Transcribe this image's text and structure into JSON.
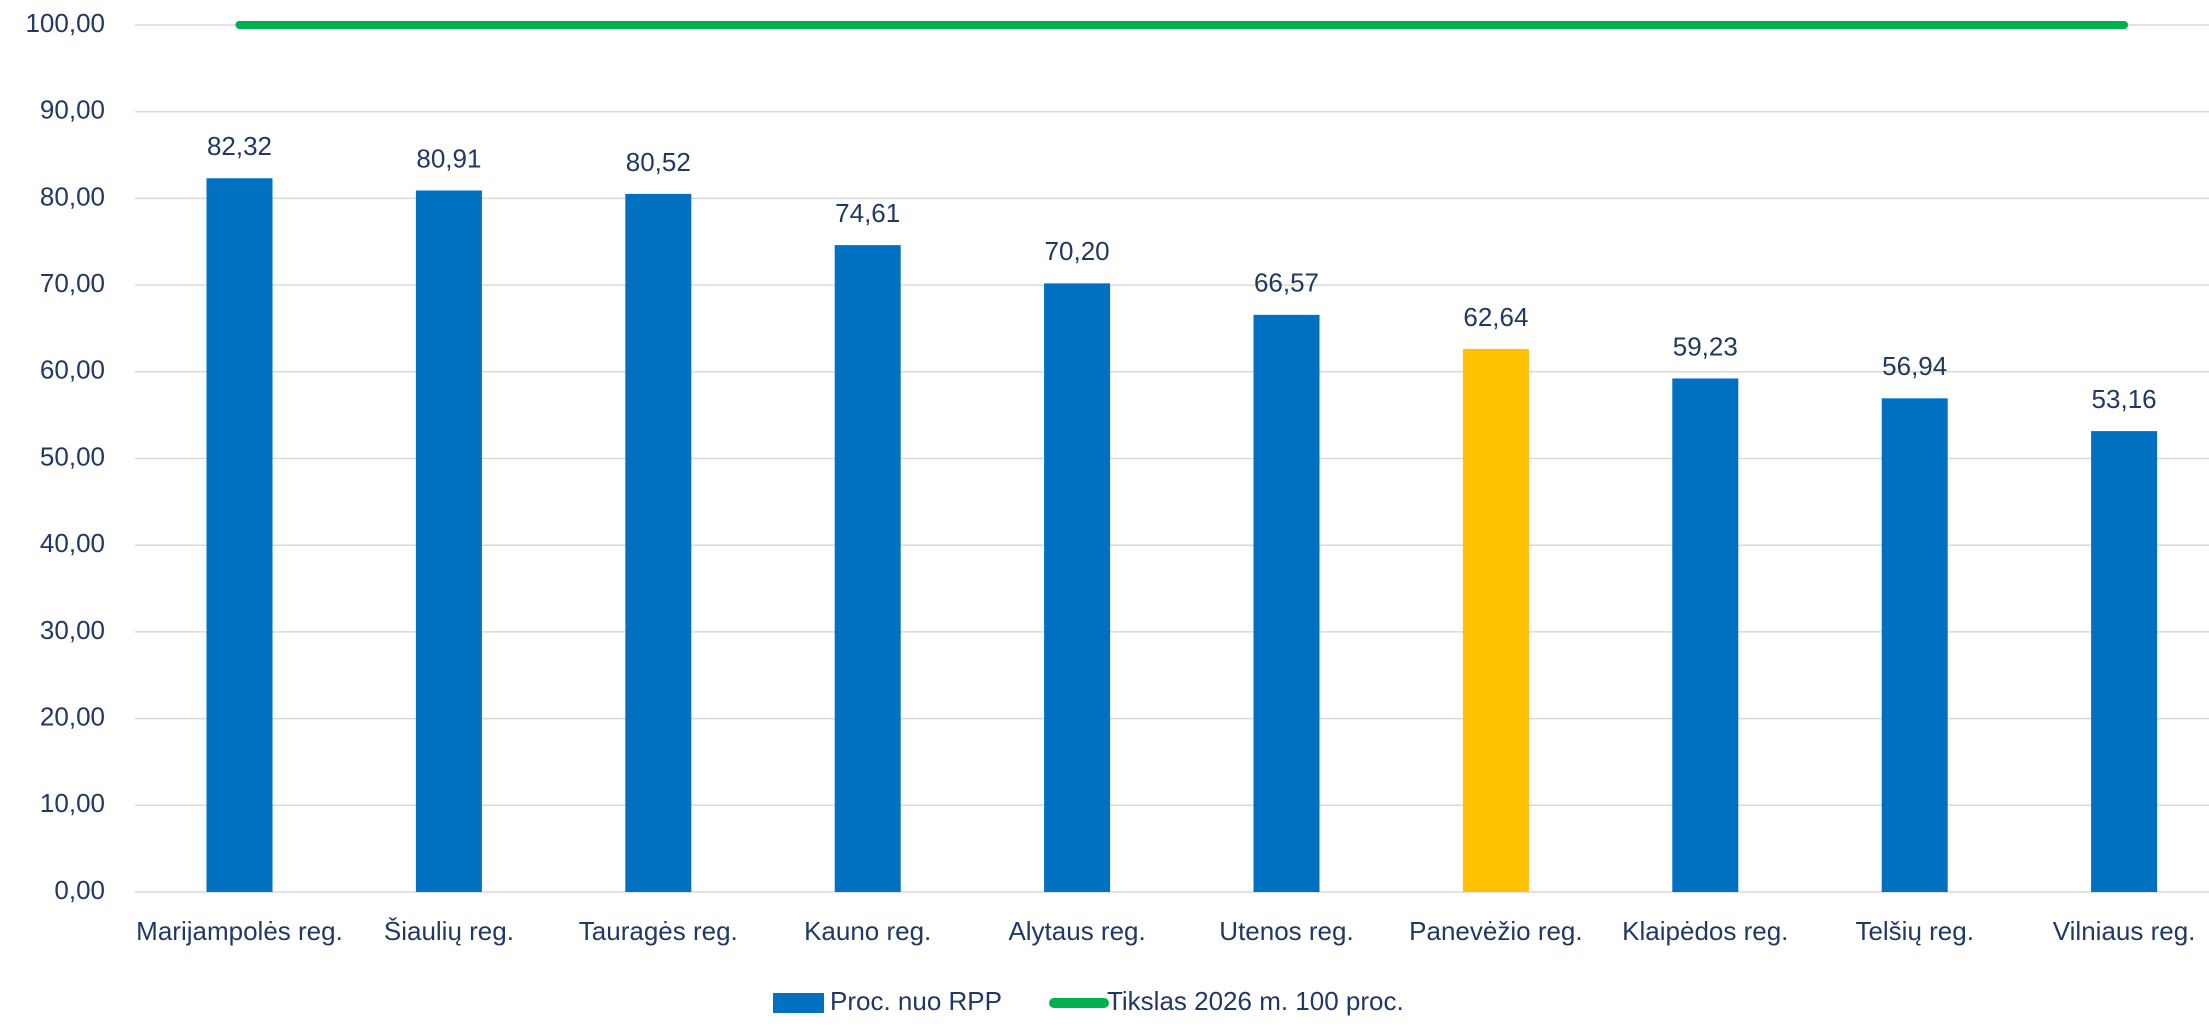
{
  "chart_data": {
    "type": "bar",
    "categories": [
      "Marijampolės reg.",
      "Šiaulių reg.",
      "Tauragės reg.",
      "Kauno reg.",
      "Alytaus reg.",
      "Utenos reg.",
      "Panevėžio reg.",
      "Klaipėdos reg.",
      "Telšių reg.",
      "Vilniaus reg."
    ],
    "series": [
      {
        "name": "Proc. nuo RPP",
        "type": "bar",
        "color": "#0070c0",
        "colors": [
          "#0070c0",
          "#0070c0",
          "#0070c0",
          "#0070c0",
          "#0070c0",
          "#0070c0",
          "#ffc000",
          "#0070c0",
          "#0070c0",
          "#0070c0"
        ],
        "values": [
          82.32,
          80.91,
          80.52,
          74.61,
          70.2,
          66.57,
          62.64,
          59.23,
          56.94,
          53.16
        ],
        "value_labels": [
          "82,32",
          "80,91",
          "80,52",
          "74,61",
          "70,20",
          "66,57",
          "62,64",
          "59,23",
          "56,94",
          "53,16"
        ]
      },
      {
        "name": "Tikslas 2026 m. 100 proc.",
        "type": "line",
        "color": "#00b050",
        "values": [
          100,
          100,
          100,
          100,
          100,
          100,
          100,
          100,
          100,
          100
        ]
      }
    ],
    "ylim": [
      0,
      100
    ],
    "yticks": [
      {
        "value": 0,
        "label": "0,00"
      },
      {
        "value": 10,
        "label": "10,00"
      },
      {
        "value": 20,
        "label": "20,00"
      },
      {
        "value": 30,
        "label": "30,00"
      },
      {
        "value": 40,
        "label": "40,00"
      },
      {
        "value": 50,
        "label": "50,00"
      },
      {
        "value": 60,
        "label": "60,00"
      },
      {
        "value": 70,
        "label": "70,00"
      },
      {
        "value": 80,
        "label": "80,00"
      },
      {
        "value": 90,
        "label": "90,00"
      },
      {
        "value": 100,
        "label": "100,00"
      }
    ],
    "grid": true,
    "legend": "bottom"
  }
}
